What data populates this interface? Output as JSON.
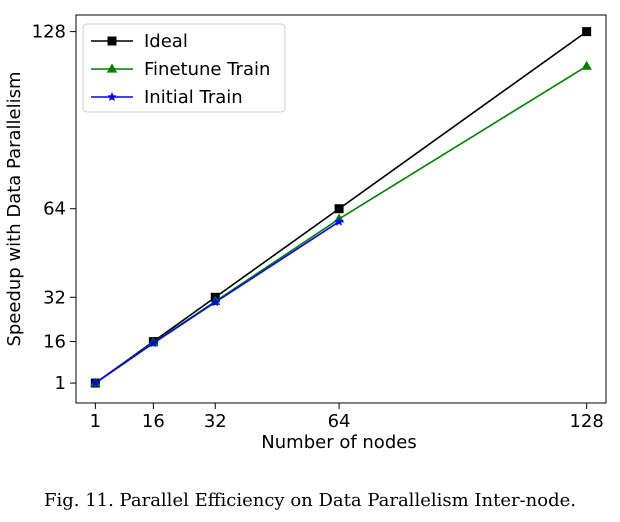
{
  "chart_data": {
    "type": "line",
    "title": "",
    "xlabel": "Number of nodes",
    "ylabel": "Speedup with Data Parallelism",
    "x_ticks": [
      1,
      16,
      32,
      64,
      128
    ],
    "y_ticks": [
      1,
      16,
      32,
      64,
      128
    ],
    "xlim": [
      -4,
      133
    ],
    "ylim": [
      -6.2,
      134
    ],
    "grid": false,
    "legend_position": "top-left",
    "series": [
      {
        "name": "Ideal",
        "color": "#000000",
        "marker": "square",
        "x": [
          1,
          16,
          32,
          64,
          128
        ],
        "y": [
          1,
          16,
          32,
          64,
          128
        ]
      },
      {
        "name": "Finetune Train",
        "color": "#008000",
        "marker": "triangle",
        "x": [
          1,
          16,
          32,
          64,
          128
        ],
        "y": [
          1,
          15.6,
          30.5,
          60.3,
          115.5
        ]
      },
      {
        "name": "Initial Train",
        "color": "#0000ff",
        "marker": "star",
        "x": [
          1,
          16,
          32,
          64
        ],
        "y": [
          1,
          15.4,
          30.2,
          59.3
        ]
      }
    ]
  },
  "caption": "Fig. 11.  Parallel Efficiency on Data Parallelism Inter-node."
}
